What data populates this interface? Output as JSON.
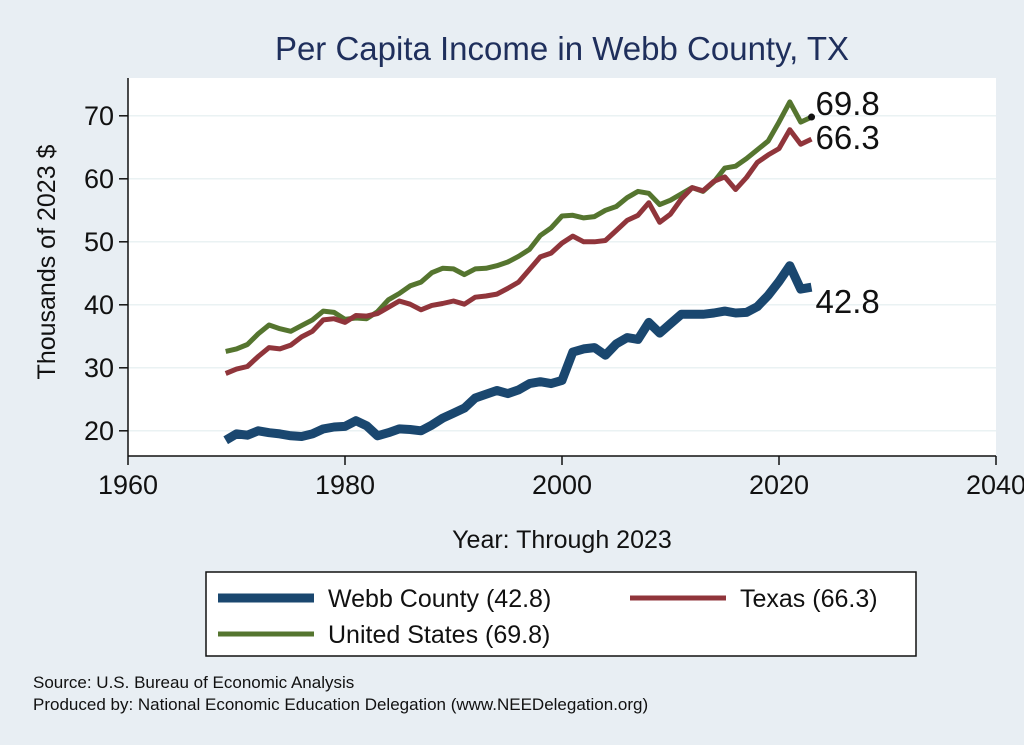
{
  "chart_data": {
    "type": "line",
    "title": "Per Capita Income in Webb County, TX",
    "xlabel": "Year: Through 2023",
    "ylabel": "Thousands of 2023 $",
    "xlim": [
      1960,
      2040
    ],
    "ylim": [
      16,
      76
    ],
    "xticks": [
      1960,
      1980,
      2000,
      2020,
      2040
    ],
    "yticks": [
      20,
      30,
      40,
      50,
      60,
      70
    ],
    "grid": true,
    "legend_position": "bottom",
    "x": [
      1969,
      1970,
      1971,
      1972,
      1973,
      1974,
      1975,
      1976,
      1977,
      1978,
      1979,
      1980,
      1981,
      1982,
      1983,
      1984,
      1985,
      1986,
      1987,
      1988,
      1989,
      1990,
      1991,
      1992,
      1993,
      1994,
      1995,
      1996,
      1997,
      1998,
      1999,
      2000,
      2001,
      2002,
      2003,
      2004,
      2005,
      2006,
      2007,
      2008,
      2009,
      2010,
      2011,
      2012,
      2013,
      2014,
      2015,
      2016,
      2017,
      2018,
      2019,
      2020,
      2021,
      2022,
      2023
    ],
    "series": [
      {
        "name": "Webb County (42.8)",
        "color": "#1a476f",
        "values": [
          18.5,
          19.5,
          19.3,
          20.0,
          19.7,
          19.5,
          19.2,
          19.1,
          19.5,
          20.3,
          20.6,
          20.7,
          21.6,
          20.8,
          19.2,
          19.7,
          20.3,
          20.2,
          20.0,
          20.9,
          22.0,
          22.8,
          23.6,
          25.2,
          25.8,
          26.4,
          25.9,
          26.5,
          27.5,
          27.8,
          27.5,
          28.0,
          32.5,
          33.0,
          33.2,
          32.0,
          33.8,
          34.8,
          34.5,
          37.2,
          35.5,
          37.0,
          38.5,
          38.5,
          38.5,
          38.7,
          39.0,
          38.7,
          38.8,
          39.7,
          41.5,
          43.7,
          46.2,
          42.5,
          42.8
        ],
        "end_label": "42.8"
      },
      {
        "name": "Texas (66.3)",
        "color": "#90353b",
        "values": [
          29.1,
          29.8,
          30.2,
          31.8,
          33.2,
          33.0,
          33.6,
          34.9,
          35.8,
          37.6,
          37.8,
          37.2,
          38.3,
          38.2,
          38.6,
          39.6,
          40.6,
          40.1,
          39.2,
          39.9,
          40.2,
          40.6,
          40.1,
          41.2,
          41.4,
          41.7,
          42.6,
          43.6,
          45.6,
          47.6,
          48.2,
          49.8,
          50.9,
          50.0,
          50.0,
          50.2,
          51.8,
          53.4,
          54.2,
          56.2,
          53.1,
          54.4,
          56.8,
          58.6,
          58.1,
          59.6,
          60.3,
          58.3,
          60.2,
          62.6,
          63.8,
          64.8,
          67.8,
          65.5,
          66.3
        ],
        "end_label": "66.3"
      },
      {
        "name": "United States (69.8)",
        "color": "#55752f",
        "values": [
          32.6,
          33.0,
          33.7,
          35.4,
          36.8,
          36.2,
          35.8,
          36.7,
          37.6,
          39.0,
          38.8,
          37.7,
          37.9,
          37.8,
          38.9,
          40.8,
          41.8,
          43.0,
          43.6,
          45.1,
          45.8,
          45.7,
          44.8,
          45.7,
          45.8,
          46.2,
          46.8,
          47.7,
          48.8,
          51.0,
          52.2,
          54.1,
          54.2,
          53.8,
          54.0,
          55.0,
          55.6,
          57.0,
          58.0,
          57.7,
          55.9,
          56.6,
          57.6,
          58.6,
          58.0,
          59.5,
          61.7,
          62.0,
          63.2,
          64.6,
          66.0,
          69.0,
          72.2,
          69.0,
          69.8
        ],
        "end_label": "69.8"
      }
    ]
  },
  "notes": {
    "source": "Source: U.S. Bureau of Economic Analysis",
    "produced": "Produced by: National Economic Education Delegation (www.NEEDelegation.org)"
  }
}
